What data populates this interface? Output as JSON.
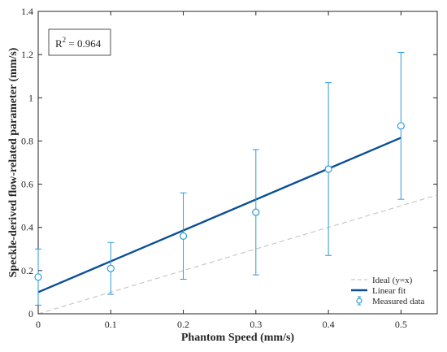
{
  "chart_data": {
    "type": "scatter",
    "xlabel": "Phantom Speed (mm/s)",
    "ylabel": "Speckle-derived flow-related parameter (mm/s)",
    "xlim": [
      0,
      0.55
    ],
    "ylim": [
      0,
      1.4
    ],
    "x_ticks": [
      "0",
      "0.1",
      "0.2",
      "0.3",
      "0.4",
      "0.5"
    ],
    "y_ticks": [
      "0",
      "0.2",
      "0.4",
      "0.6",
      "0.8",
      "1",
      "1.2",
      "1.4"
    ],
    "grid": false,
    "legend_position": "bottom-right",
    "annotation": {
      "base": "R",
      "sup": "2",
      "rest": " = 0.964"
    },
    "series": [
      {
        "name": "Measured data",
        "kind": "errorbar",
        "color": "#2e9bd6",
        "x": [
          0,
          0.1,
          0.2,
          0.3,
          0.4,
          0.5
        ],
        "y": [
          0.17,
          0.21,
          0.36,
          0.47,
          0.67,
          0.87
        ],
        "y_lower": [
          0.04,
          0.09,
          0.16,
          0.18,
          0.27,
          0.53
        ],
        "y_upper": [
          0.3,
          0.33,
          0.56,
          0.76,
          1.07,
          1.21
        ]
      },
      {
        "name": "Linear fit",
        "kind": "line",
        "color": "#0b4f94",
        "x": [
          0,
          0.5
        ],
        "y": [
          0.1,
          0.815
        ]
      },
      {
        "name": "Ideal (y=x)",
        "kind": "dashed-line",
        "color": "#c8c8c8",
        "x": [
          0,
          0.55
        ],
        "y": [
          0,
          0.55
        ]
      }
    ]
  }
}
